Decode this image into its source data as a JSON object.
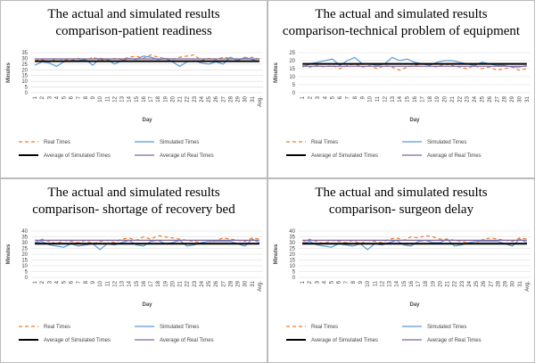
{
  "chart_data": [
    {
      "type": "line",
      "title": "The actual and simulated results comparison-patient readiness",
      "y_label": "Minutes",
      "x_label": "Day",
      "categories": [
        "1",
        "2",
        "3",
        "4",
        "5",
        "6",
        "7",
        "8",
        "9",
        "10",
        "11",
        "12",
        "13",
        "14",
        "15",
        "16",
        "17",
        "18",
        "19",
        "20",
        "21",
        "22",
        "23",
        "24",
        "25",
        "26",
        "27",
        "28",
        "29",
        "30",
        "31",
        "Avg."
      ],
      "ylim": [
        0,
        35
      ],
      "yticks": [
        0,
        5,
        10,
        15,
        20,
        25,
        30,
        35
      ],
      "grid": true,
      "series": [
        {
          "name": "Real Times",
          "color": "#ED7D31",
          "dashed": true,
          "values": [
            28,
            29,
            27,
            30,
            29,
            28,
            30,
            28,
            31,
            29,
            28,
            30,
            29,
            31,
            32,
            30,
            33,
            31,
            30,
            29,
            31,
            32,
            33,
            28,
            30,
            29,
            31,
            30,
            29,
            30,
            31,
            29
          ]
        },
        {
          "name": "Simulated Times",
          "color": "#5B9BD5",
          "values": [
            24,
            27,
            26,
            23,
            27,
            28,
            28,
            29,
            24,
            30,
            29,
            25,
            28,
            30,
            29,
            32,
            31,
            29,
            30,
            27,
            23,
            27,
            28,
            26,
            25,
            27,
            25,
            31,
            28,
            31,
            29,
            27
          ]
        },
        {
          "name": "Average of Simulated Times",
          "color": "#000000",
          "value": 27.5
        },
        {
          "name": "Average of Real Times",
          "color": "#8064A2",
          "value": 29.5
        }
      ]
    },
    {
      "type": "line",
      "title": "The actual and simulated results comparison-technical problem of equipment",
      "y_label": "Minutes",
      "x_label": "Day",
      "categories": [
        "1",
        "2",
        "3",
        "4",
        "5",
        "6",
        "7",
        "8",
        "9",
        "10",
        "11",
        "12",
        "13",
        "14",
        "15",
        "16",
        "17",
        "18",
        "19",
        "20",
        "21",
        "22",
        "23",
        "24",
        "25",
        "26",
        "27",
        "28",
        "29",
        "30",
        "31"
      ],
      "ylim": [
        0,
        25
      ],
      "yticks": [
        0,
        5,
        10,
        15,
        20,
        25
      ],
      "grid": true,
      "series": [
        {
          "name": "Real Times",
          "color": "#ED7D31",
          "dashed": true,
          "values": [
            17,
            16,
            17,
            16,
            17,
            15,
            17,
            18,
            16,
            17,
            15,
            17,
            16,
            14,
            16,
            17,
            18,
            17,
            16,
            18,
            17,
            16,
            15,
            17,
            15,
            16,
            14,
            15,
            16,
            14,
            15
          ]
        },
        {
          "name": "Simulated Times",
          "color": "#5B9BD5",
          "values": [
            16,
            18,
            19,
            20,
            21,
            17,
            20,
            22,
            18,
            18,
            17,
            18,
            22,
            20,
            21,
            19,
            18,
            17,
            19,
            20,
            20,
            19,
            18,
            17,
            19,
            18,
            17,
            17,
            16,
            16,
            17
          ]
        },
        {
          "name": "Average of Simulated Times",
          "color": "#000000",
          "value": 18
        },
        {
          "name": "Average of Real Times",
          "color": "#8064A2",
          "value": 16.5
        }
      ]
    },
    {
      "type": "line",
      "title": "The actual and simulated results comparison- shortage of recovery bed",
      "y_label": "Minutes",
      "x_label": "Day",
      "categories": [
        "1",
        "2",
        "3",
        "4",
        "5",
        "6",
        "7",
        "8",
        "9",
        "10",
        "11",
        "12",
        "13",
        "14",
        "15",
        "16",
        "17",
        "18",
        "19",
        "20",
        "21",
        "22",
        "23",
        "24",
        "25",
        "26",
        "27",
        "28",
        "29",
        "30",
        "31",
        "Avg."
      ],
      "ylim": [
        0,
        40
      ],
      "yticks": [
        0,
        5,
        10,
        15,
        20,
        25,
        30,
        35,
        40
      ],
      "grid": true,
      "series": [
        {
          "name": "Real Times",
          "color": "#ED7D31",
          "dashed": true,
          "values": [
            30,
            33,
            31,
            29,
            32,
            31,
            30,
            32,
            29,
            31,
            32,
            30,
            33,
            34,
            32,
            35,
            33,
            36,
            35,
            34,
            33,
            32,
            31,
            30,
            29,
            32,
            34,
            33,
            32,
            31,
            34,
            33
          ]
        },
        {
          "name": "Simulated Times",
          "color": "#5B9BD5",
          "values": [
            30,
            31,
            28,
            27,
            26,
            29,
            27,
            28,
            29,
            24,
            29,
            28,
            30,
            32,
            28,
            27,
            31,
            32,
            29,
            30,
            32,
            27,
            28,
            30,
            31,
            31,
            31,
            31,
            29,
            27,
            33,
            30
          ]
        },
        {
          "name": "Average of Simulated Times",
          "color": "#000000",
          "value": 29
        },
        {
          "name": "Average of Real Times",
          "color": "#8064A2",
          "value": 32
        }
      ]
    },
    {
      "type": "line",
      "title": "The actual and simulated results comparison- surgeon delay",
      "y_label": "Minutes",
      "x_label": "Day",
      "categories": [
        "1",
        "2",
        "3",
        "4",
        "5",
        "6",
        "7",
        "8",
        "9",
        "10",
        "11",
        "12",
        "13",
        "14",
        "15",
        "16",
        "17",
        "18",
        "19",
        "20",
        "21",
        "22",
        "23",
        "24",
        "25",
        "26",
        "27",
        "28",
        "29",
        "30",
        "31",
        "Avg."
      ],
      "ylim": [
        0,
        40
      ],
      "yticks": [
        0,
        5,
        10,
        15,
        20,
        25,
        30,
        35,
        40
      ],
      "grid": true,
      "series": [
        {
          "name": "Real Times",
          "color": "#ED7D31",
          "dashed": true,
          "values": [
            30,
            33,
            31,
            29,
            32,
            31,
            30,
            32,
            29,
            32,
            31,
            30,
            33,
            34,
            32,
            35,
            34,
            36,
            35,
            33,
            33,
            32,
            31,
            30,
            29,
            33,
            34,
            33,
            32,
            31,
            34,
            33
          ]
        },
        {
          "name": "Simulated Times",
          "color": "#5B9BD5",
          "values": [
            29,
            31,
            28,
            27,
            26,
            29,
            28,
            27,
            29,
            24,
            29,
            28,
            30,
            32,
            28,
            27,
            31,
            32,
            30,
            30,
            33,
            27,
            28,
            30,
            31,
            31,
            31,
            31,
            29,
            27,
            33,
            30
          ]
        },
        {
          "name": "Average of Simulated Times",
          "color": "#000000",
          "value": 29
        },
        {
          "name": "Average of Real Times",
          "color": "#8064A2",
          "value": 32
        }
      ]
    }
  ]
}
